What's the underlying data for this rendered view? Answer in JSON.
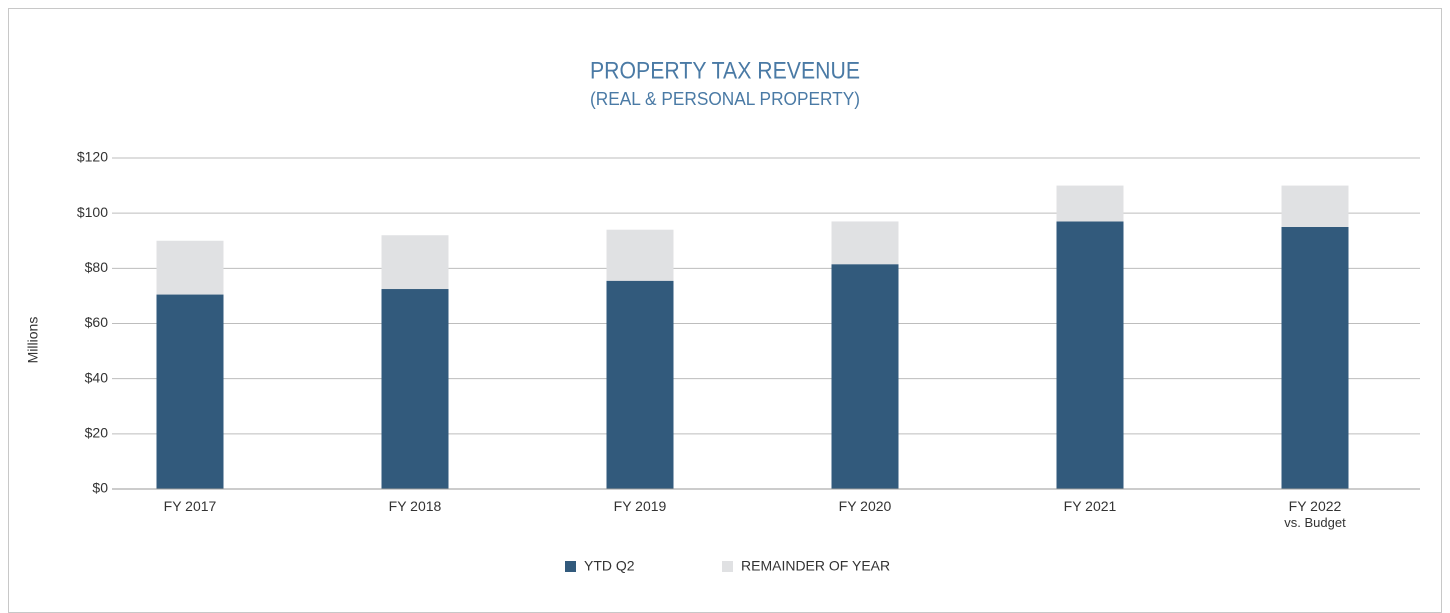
{
  "chart_data": {
    "type": "stacked_bar",
    "title": "PROPERTY TAX REVENUE",
    "subtitle": "(REAL & PERSONAL PROPERTY)",
    "y_label": "Millions",
    "categories": [
      "FY 2017",
      "FY 2018",
      "FY 2019",
      "FY 2020",
      "FY 2021",
      "FY 2022\nvs. Budget"
    ],
    "series": [
      {
        "name": "YTD Q2",
        "color": "#325a7c",
        "values": [
          70.5,
          72.5,
          75.5,
          81.5,
          97,
          95
        ]
      },
      {
        "name": "REMAINDER OF YEAR",
        "color": "#e0e1e3",
        "values": [
          19.5,
          19.5,
          18.5,
          15.5,
          13,
          15
        ]
      }
    ],
    "ylim": [
      0,
      120
    ],
    "yticks": [
      {
        "value": 0,
        "label": "$0"
      },
      {
        "value": 20,
        "label": "$20"
      },
      {
        "value": 40,
        "label": "$40"
      },
      {
        "value": 60,
        "label": "$60"
      },
      {
        "value": 80,
        "label": "$80"
      },
      {
        "value": 100,
        "label": "$100"
      },
      {
        "value": 120,
        "label": "$120"
      }
    ],
    "grid": true,
    "legend": "bottom"
  }
}
